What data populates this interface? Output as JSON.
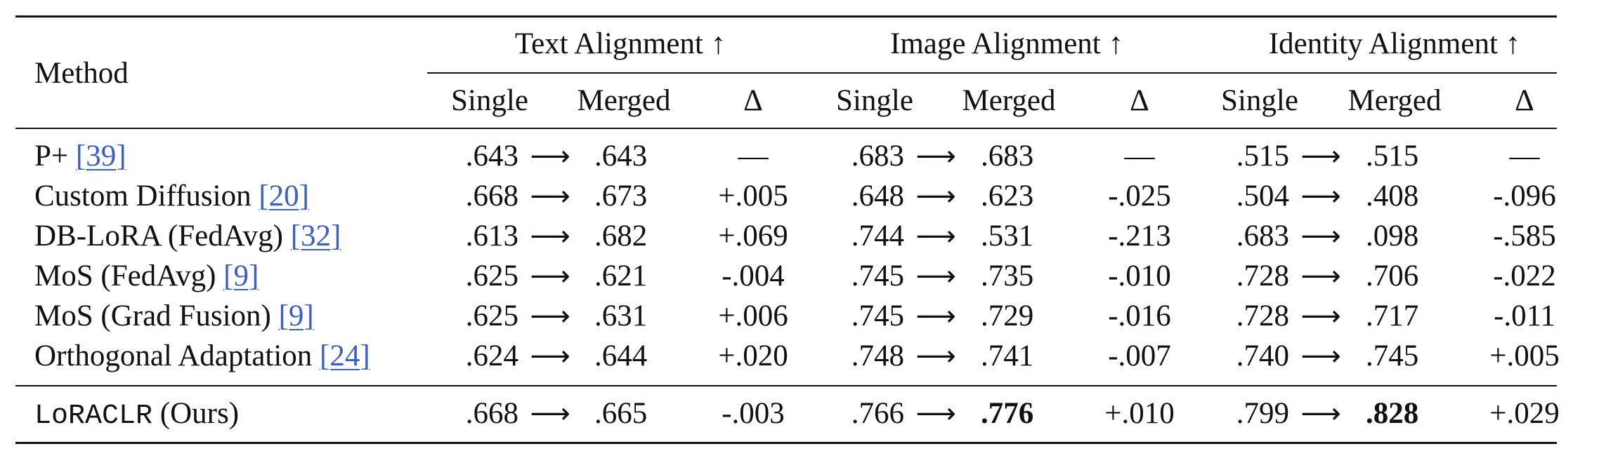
{
  "table": {
    "header": {
      "method": "Method",
      "groups": [
        "Text Alignment ↑",
        "Image Alignment ↑",
        "Identity Alignment ↑"
      ],
      "subheaders": [
        "Single",
        "Merged",
        "Δ"
      ]
    },
    "arrow": "⟶",
    "rows": [
      {
        "method": "P+ ",
        "cite": "[39]",
        "suffix": "",
        "cells": [
          [
            ".643",
            ".643",
            "—"
          ],
          [
            ".683",
            ".683",
            "—"
          ],
          [
            ".515",
            ".515",
            "—"
          ]
        ]
      },
      {
        "method": "Custom Diffusion ",
        "cite": "[20]",
        "suffix": "",
        "cells": [
          [
            ".668",
            ".673",
            "+.005"
          ],
          [
            ".648",
            ".623",
            "-.025"
          ],
          [
            ".504",
            ".408",
            "-.096"
          ]
        ]
      },
      {
        "method": "DB-LoRA (FedAvg) ",
        "cite": "[32]",
        "suffix": "",
        "cells": [
          [
            ".613",
            ".682",
            "+.069"
          ],
          [
            ".744",
            ".531",
            "-.213"
          ],
          [
            ".683",
            ".098",
            "-.585"
          ]
        ]
      },
      {
        "method": "MoS (FedAvg) ",
        "cite": "[9]",
        "suffix": "",
        "cells": [
          [
            ".625",
            ".621",
            "-.004"
          ],
          [
            ".745",
            ".735",
            "-.010"
          ],
          [
            ".728",
            ".706",
            "-.022"
          ]
        ]
      },
      {
        "method": "MoS (Grad Fusion) ",
        "cite": "[9]",
        "suffix": "",
        "cells": [
          [
            ".625",
            ".631",
            "+.006"
          ],
          [
            ".745",
            ".729",
            "-.016"
          ],
          [
            ".728",
            ".717",
            "-.011"
          ]
        ]
      },
      {
        "method": "Orthogonal Adaptation ",
        "cite": "[24]",
        "suffix": "",
        "cells": [
          [
            ".624",
            ".644",
            "+.020"
          ],
          [
            ".748",
            ".741",
            "-.007"
          ],
          [
            ".740",
            ".745",
            "+.005"
          ]
        ]
      }
    ],
    "ours": {
      "method_mono": "LoRACLR",
      "method_suffix": " (Ours)",
      "cells": [
        [
          ".668",
          ".665",
          "-.003"
        ],
        [
          ".766",
          ".776",
          "+.010"
        ],
        [
          ".799",
          ".828",
          "+.029"
        ]
      ],
      "bold_merged": [
        false,
        true,
        true
      ]
    }
  }
}
